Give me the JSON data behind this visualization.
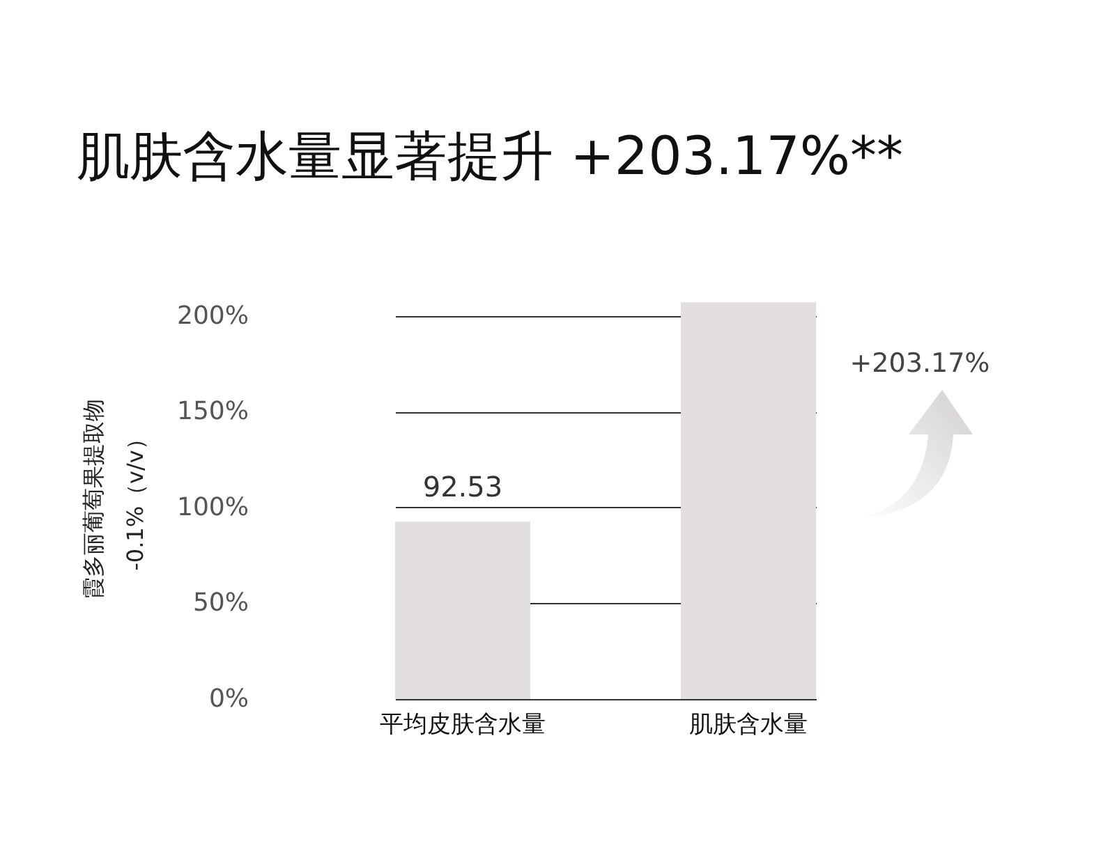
{
  "chart_data": {
    "type": "bar",
    "title": "肌肤含水量显著提升 +203.17%**",
    "ylabel": "霞多丽葡萄果提取物\n-0.1%（v/v）",
    "categories": [
      "平均皮肤含水量",
      "肌肤含水量"
    ],
    "values": [
      92.53,
      207
    ],
    "value_labels": [
      "92.53",
      null
    ],
    "color": "#e2dede",
    "ylim": [
      0,
      210
    ],
    "yticks": [
      {
        "value": 0,
        "label": "0%"
      },
      {
        "value": 50,
        "label": "50%"
      },
      {
        "value": 100,
        "label": "100%"
      },
      {
        "value": 150,
        "label": "150%"
      },
      {
        "value": 200,
        "label": "200%"
      }
    ],
    "grid": "y",
    "annotations": [
      "+203.17%"
    ]
  }
}
